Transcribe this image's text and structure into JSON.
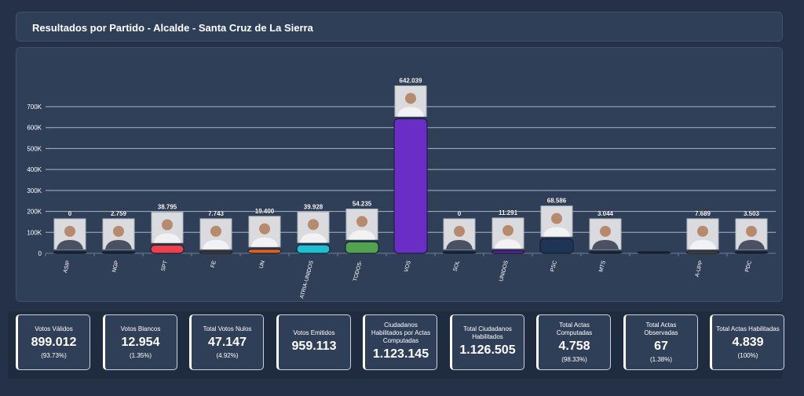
{
  "header": {
    "title": "Resultados por Partido - Alcalde - Santa Cruz de La Sierra"
  },
  "chart_data": {
    "type": "bar",
    "title": "Resultados por Partido - Alcalde - Santa Cruz de La Sierra",
    "xlabel": "",
    "ylabel": "",
    "ylim": [
      0,
      700000
    ],
    "yticks": [
      "0",
      "100K",
      "200K",
      "300K",
      "400K",
      "500K",
      "600K",
      "700K"
    ],
    "grid": true,
    "categories": [
      "ASIP",
      "NGP",
      "SPT",
      "FE",
      "UN",
      "ATRIA-UNIDOS",
      "TODOS-",
      "VOS",
      "SOL",
      "UNIDOS",
      "PSC",
      "MTS",
      "",
      "A-UPP",
      "PDC"
    ],
    "values": [
      0,
      2759,
      38795,
      7743,
      19400,
      39928,
      54235,
      642039,
      0,
      11291,
      68586,
      3044,
      0,
      7689,
      3503
    ],
    "labels": [
      "0",
      "2.759",
      "38.795",
      "7.743",
      "19.400",
      "39.928",
      "54.235",
      "642.039",
      "0",
      "11.291",
      "68.586",
      "3.044",
      "",
      "7.689",
      "3.503"
    ],
    "colors": [
      "#1b2536",
      "#1b2536",
      "#f0404a",
      "#6b4e1c",
      "#e0621a",
      "#1cc0d2",
      "#52a34f",
      "#6a2ec6",
      "#1b2536",
      "#7a14c4",
      "#1e3558",
      "#1b2536",
      "#1b2536",
      "#7a6820",
      "#1b2536"
    ],
    "has_photo": [
      true,
      true,
      true,
      true,
      true,
      true,
      true,
      true,
      true,
      true,
      true,
      true,
      false,
      true,
      true
    ]
  },
  "stats": [
    {
      "label": "Votos Válidos",
      "value": "899.012",
      "pct": "(93.73%)"
    },
    {
      "label": "Votos Blancos",
      "value": "12.954",
      "pct": "(1.35%)"
    },
    {
      "label": "Total Votos Nulos",
      "value": "47.147",
      "pct": "(4.92%)"
    },
    {
      "label": "Votos Emitidos",
      "value": "959.113",
      "pct": ""
    },
    {
      "label": "Ciudadanos Habilitados por Actas Computadas",
      "value": "1.123.145",
      "pct": ""
    },
    {
      "label": "Total Ciudadanos Habilitados",
      "value": "1.126.505",
      "pct": ""
    },
    {
      "label": "Total Actas Computadas",
      "value": "4.758",
      "pct": "(98.33%)"
    },
    {
      "label": "Total Actas Observadas",
      "value": "67",
      "pct": "(1.38%)"
    },
    {
      "label": "Total Actas Habilitadas",
      "value": "4.839",
      "pct": "(100%)"
    }
  ]
}
